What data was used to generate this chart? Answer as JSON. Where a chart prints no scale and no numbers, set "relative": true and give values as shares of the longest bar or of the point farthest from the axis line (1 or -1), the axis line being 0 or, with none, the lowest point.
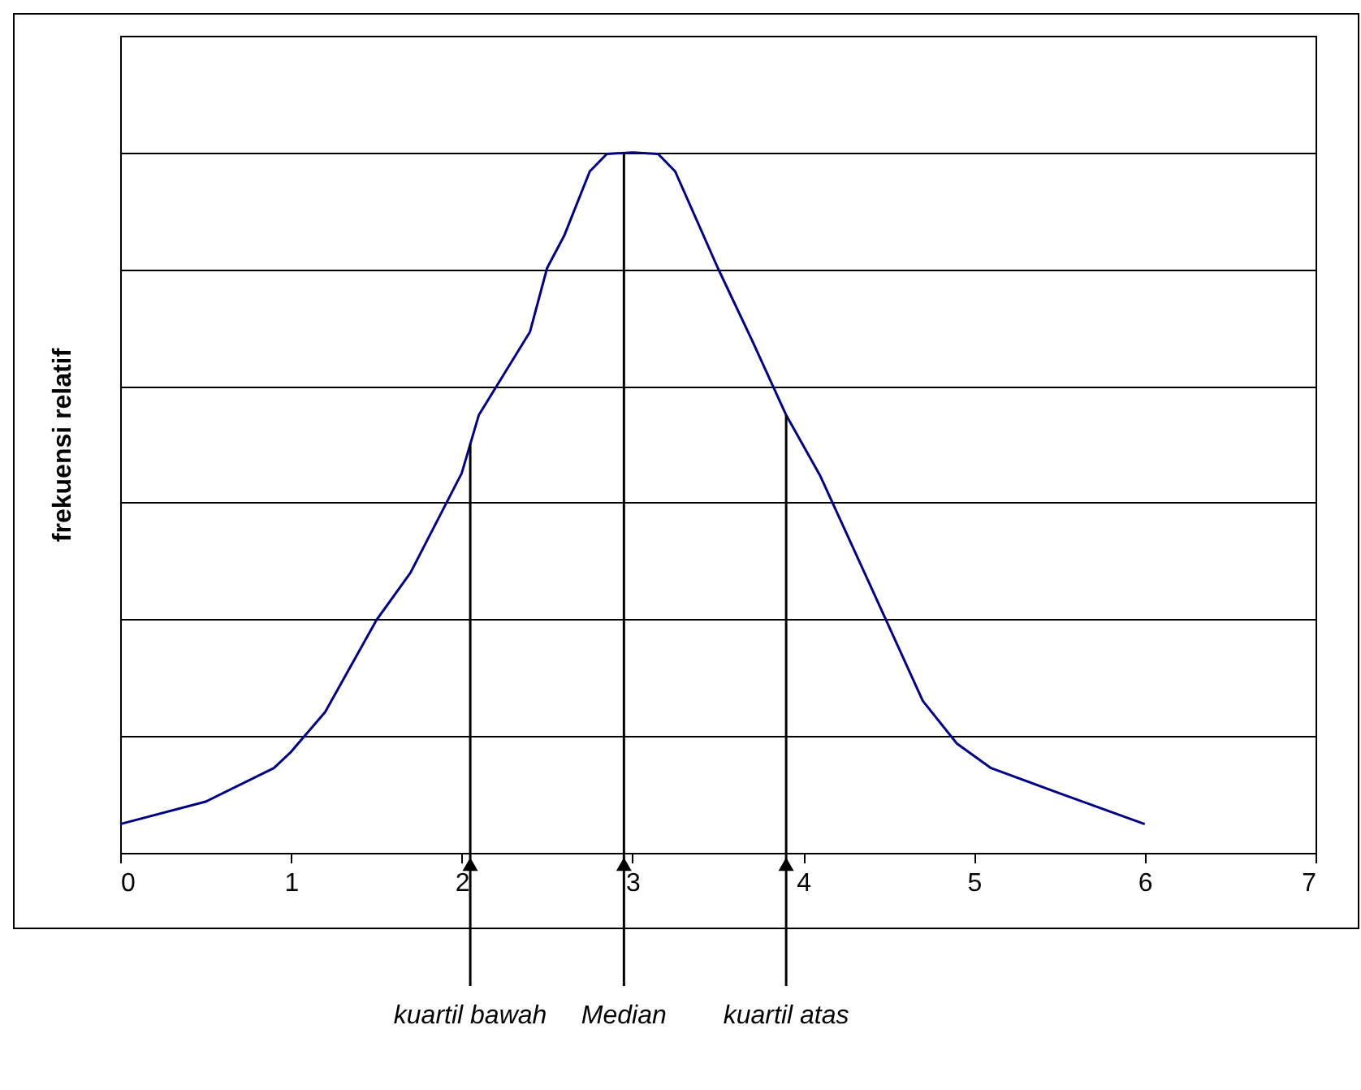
{
  "chart_data": {
    "type": "line",
    "ylabel": "frekuensi relatif",
    "relative": true,
    "grid": "y",
    "marker": "none",
    "line_style": "solid",
    "xlim": [
      0,
      7
    ],
    "xticks": [
      0,
      1,
      2,
      3,
      4,
      5,
      6,
      7
    ],
    "series": [
      {
        "color": "#000080",
        "x": [
          0,
          0.5,
          0.9,
          1.0,
          1.2,
          1.5,
          1.7,
          2.0,
          2.1,
          2.4,
          2.5,
          2.6,
          2.75,
          2.85,
          3.0,
          3.15,
          3.25,
          3.5,
          3.7,
          3.9,
          4.1,
          4.4,
          4.7,
          4.9,
          5.1,
          5.5,
          6.0
        ],
        "values": [
          0.041,
          0.073,
          0.121,
          0.144,
          0.201,
          0.332,
          0.4,
          0.542,
          0.625,
          0.744,
          0.835,
          0.881,
          0.973,
          0.998,
          1,
          0.998,
          0.973,
          0.835,
          0.732,
          0.625,
          0.538,
          0.378,
          0.217,
          0.156,
          0.121,
          0.085,
          0.041
        ]
      }
    ],
    "ref_lines": [
      {
        "axis": "x",
        "value": 2.05,
        "label": "kuartil bawah",
        "color": "#000000"
      },
      {
        "axis": "x",
        "value": 2.95,
        "label": "Median",
        "color": "#000000"
      },
      {
        "axis": "x",
        "value": 3.9,
        "label": "kuartil atas",
        "color": "#000000"
      }
    ]
  }
}
